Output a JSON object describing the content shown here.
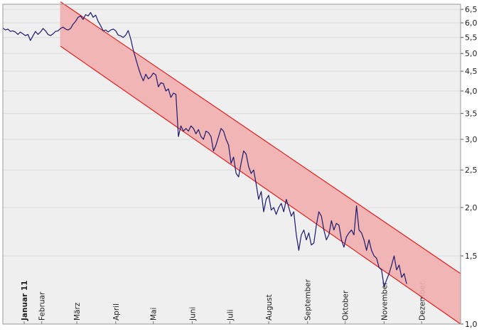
{
  "chart_data": {
    "type": "line",
    "title": "",
    "xlabel": "",
    "ylabel": "",
    "x_ticks": [
      {
        "label": "Januar 11",
        "bold": true
      },
      {
        "label": "Februar"
      },
      {
        "label": "März"
      },
      {
        "label": "April"
      },
      {
        "label": "Mai"
      },
      {
        "label": "Juni"
      },
      {
        "label": "Juli"
      },
      {
        "label": "August"
      },
      {
        "label": "September"
      },
      {
        "label": "Oktober"
      },
      {
        "label": "November"
      },
      {
        "label": "Dezember"
      }
    ],
    "x_range_days": [
      0,
      365
    ],
    "y_scale": "log",
    "ylim": [
      1.0,
      6.7
    ],
    "y_ticks": [
      "1,0",
      "1,5",
      "2,0",
      "2,5",
      "3,0",
      "3,5",
      "4,0",
      "4,5",
      "5,0",
      "5,5",
      "6,0",
      "6,5"
    ],
    "grid": true,
    "series": [
      {
        "color": "#1a1a6e",
        "points": [
          [
            0,
            5.82
          ],
          [
            2,
            5.75
          ],
          [
            4,
            5.78
          ],
          [
            6,
            5.7
          ],
          [
            8,
            5.72
          ],
          [
            10,
            5.68
          ],
          [
            12,
            5.6
          ],
          [
            14,
            5.68
          ],
          [
            16,
            5.62
          ],
          [
            18,
            5.56
          ],
          [
            20,
            5.6
          ],
          [
            22,
            5.4
          ],
          [
            24,
            5.55
          ],
          [
            26,
            5.7
          ],
          [
            28,
            5.6
          ],
          [
            30,
            5.68
          ],
          [
            32,
            5.8
          ],
          [
            34,
            5.72
          ],
          [
            36,
            5.6
          ],
          [
            38,
            5.56
          ],
          [
            40,
            5.62
          ],
          [
            42,
            5.7
          ],
          [
            44,
            5.72
          ],
          [
            46,
            5.8
          ],
          [
            48,
            5.85
          ],
          [
            50,
            5.78
          ],
          [
            52,
            5.75
          ],
          [
            54,
            5.8
          ],
          [
            56,
            5.95
          ],
          [
            58,
            6.05
          ],
          [
            60,
            6.2
          ],
          [
            62,
            6.25
          ],
          [
            64,
            6.12
          ],
          [
            66,
            6.3
          ],
          [
            68,
            6.25
          ],
          [
            70,
            6.38
          ],
          [
            72,
            6.2
          ],
          [
            74,
            6.28
          ],
          [
            76,
            6.05
          ],
          [
            78,
            5.9
          ],
          [
            80,
            5.72
          ],
          [
            82,
            5.75
          ],
          [
            84,
            5.68
          ],
          [
            86,
            5.75
          ],
          [
            88,
            5.78
          ],
          [
            90,
            5.72
          ],
          [
            92,
            5.58
          ],
          [
            94,
            5.55
          ],
          [
            96,
            5.5
          ],
          [
            98,
            5.58
          ],
          [
            100,
            5.73
          ],
          [
            102,
            5.45
          ],
          [
            104,
            5.1
          ],
          [
            106,
            4.85
          ],
          [
            108,
            4.6
          ],
          [
            110,
            4.4
          ],
          [
            112,
            4.25
          ],
          [
            114,
            4.42
          ],
          [
            116,
            4.3
          ],
          [
            118,
            4.35
          ],
          [
            120,
            4.45
          ],
          [
            122,
            4.4
          ],
          [
            124,
            4.1
          ],
          [
            126,
            4.2
          ],
          [
            128,
            4.18
          ],
          [
            130,
            4.0
          ],
          [
            132,
            4.05
          ],
          [
            134,
            3.85
          ],
          [
            136,
            3.95
          ],
          [
            138,
            3.92
          ],
          [
            140,
            3.05
          ],
          [
            142,
            3.25
          ],
          [
            144,
            3.15
          ],
          [
            146,
            3.2
          ],
          [
            148,
            3.15
          ],
          [
            150,
            3.25
          ],
          [
            152,
            3.2
          ],
          [
            154,
            3.1
          ],
          [
            156,
            3.18
          ],
          [
            158,
            3.05
          ],
          [
            160,
            3.0
          ],
          [
            162,
            3.15
          ],
          [
            164,
            3.12
          ],
          [
            166,
            3.05
          ],
          [
            168,
            2.8
          ],
          [
            170,
            2.9
          ],
          [
            172,
            3.05
          ],
          [
            174,
            3.2
          ],
          [
            176,
            3.15
          ],
          [
            178,
            3.0
          ],
          [
            180,
            2.9
          ],
          [
            182,
            2.6
          ],
          [
            184,
            2.7
          ],
          [
            186,
            2.45
          ],
          [
            188,
            2.4
          ],
          [
            190,
            2.6
          ],
          [
            192,
            2.8
          ],
          [
            194,
            2.75
          ],
          [
            196,
            2.55
          ],
          [
            198,
            2.45
          ],
          [
            200,
            2.5
          ],
          [
            202,
            2.3
          ],
          [
            204,
            2.1
          ],
          [
            206,
            2.2
          ],
          [
            208,
            1.95
          ],
          [
            210,
            2.1
          ],
          [
            212,
            2.15
          ],
          [
            214,
            1.97
          ],
          [
            216,
            2.0
          ],
          [
            218,
            1.92
          ],
          [
            220,
            2.0
          ],
          [
            222,
            2.05
          ],
          [
            224,
            1.95
          ],
          [
            226,
            2.1
          ],
          [
            228,
            2.0
          ],
          [
            230,
            1.9
          ],
          [
            232,
            1.95
          ],
          [
            234,
            1.7
          ],
          [
            236,
            1.55
          ],
          [
            238,
            1.7
          ],
          [
            240,
            1.75
          ],
          [
            242,
            1.65
          ],
          [
            244,
            1.72
          ],
          [
            246,
            1.6
          ],
          [
            248,
            1.62
          ],
          [
            250,
            1.8
          ],
          [
            252,
            1.95
          ],
          [
            254,
            1.9
          ],
          [
            256,
            1.75
          ],
          [
            258,
            1.65
          ],
          [
            260,
            1.7
          ],
          [
            262,
            1.85
          ],
          [
            264,
            1.75
          ],
          [
            266,
            1.82
          ],
          [
            268,
            1.8
          ],
          [
            270,
            1.65
          ],
          [
            272,
            1.58
          ],
          [
            274,
            1.68
          ],
          [
            276,
            1.72
          ],
          [
            278,
            1.75
          ],
          [
            280,
            1.7
          ],
          [
            282,
            2.02
          ],
          [
            284,
            1.75
          ],
          [
            286,
            1.72
          ],
          [
            288,
            1.65
          ],
          [
            290,
            1.55
          ],
          [
            292,
            1.65
          ],
          [
            294,
            1.55
          ],
          [
            296,
            1.5
          ],
          [
            298,
            1.48
          ],
          [
            300,
            1.4
          ],
          [
            302,
            1.38
          ],
          [
            304,
            1.25
          ],
          [
            306,
            1.3
          ],
          [
            308,
            1.35
          ],
          [
            310,
            1.42
          ],
          [
            312,
            1.5
          ],
          [
            314,
            1.38
          ],
          [
            316,
            1.42
          ],
          [
            318,
            1.32
          ],
          [
            320,
            1.35
          ],
          [
            322,
            1.27
          ]
        ]
      }
    ],
    "channel": {
      "color": "#f1aeae",
      "edge_color": "#e02020",
      "x_range": [
        46,
        365
      ],
      "upper": [
        6.8,
        1.35
      ],
      "lower": [
        5.22,
        1.0
      ]
    }
  }
}
